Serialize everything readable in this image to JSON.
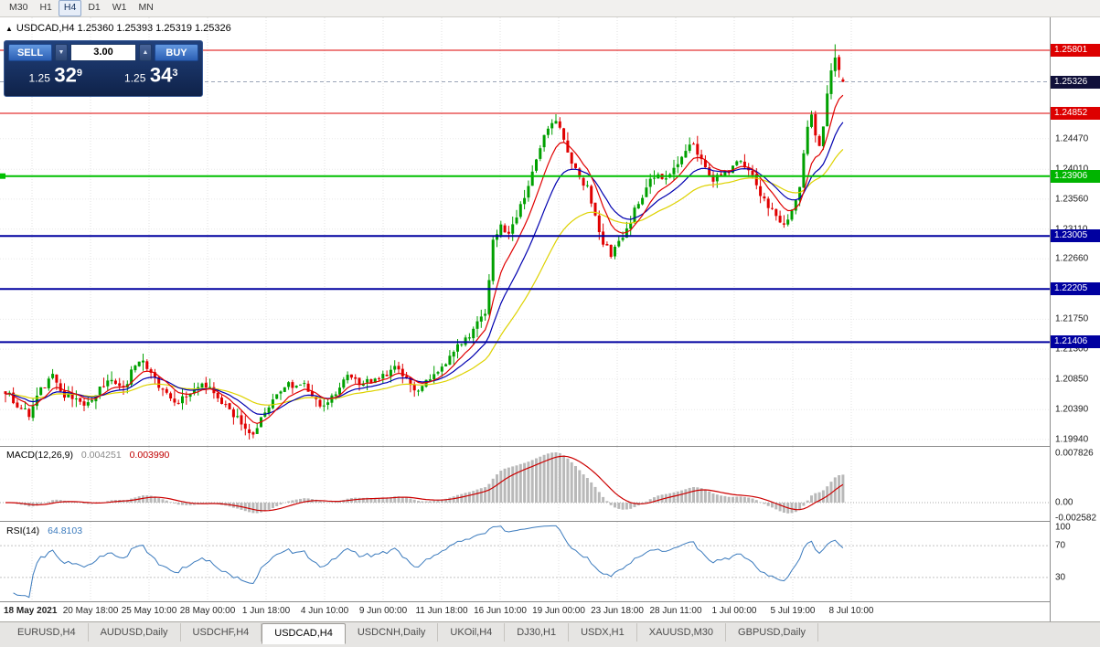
{
  "toolbar": {
    "timeframes": [
      {
        "label": "M30",
        "active": false
      },
      {
        "label": "H1",
        "active": false
      },
      {
        "label": "H4",
        "active": true
      },
      {
        "label": "D1",
        "active": false
      },
      {
        "label": "W1",
        "active": false
      },
      {
        "label": "MN",
        "active": false
      }
    ]
  },
  "chart_header": {
    "ohlc_line": "USDCAD,H4 1.25360 1.25393 1.25319 1.25326"
  },
  "one_click": {
    "sell_label": "SELL",
    "buy_label": "BUY",
    "volume": "3.00",
    "bid": {
      "main": "1.25",
      "pips": "32",
      "point": "9"
    },
    "ask": {
      "main": "1.25",
      "pips": "34",
      "point": "3"
    }
  },
  "price_axis": {
    "plain_ticks": [
      "1.24470",
      "1.24010",
      "1.23560",
      "1.23110",
      "1.22660",
      "1.21750",
      "1.21300",
      "1.20850",
      "1.20390",
      "1.19940"
    ],
    "badges": [
      {
        "label": "1.25801",
        "price": 1.25801,
        "bg": "#dd0000"
      },
      {
        "label": "1.25326",
        "price": 1.25326,
        "bg": "#10103a"
      },
      {
        "label": "1.24852",
        "price": 1.24852,
        "bg": "#dd0000"
      },
      {
        "label": "1.23906",
        "price": 1.23906,
        "bg": "#00b400"
      },
      {
        "label": "1.23005",
        "price": 1.23005,
        "bg": "#0000a0"
      },
      {
        "label": "1.22205",
        "price": 1.22205,
        "bg": "#0000a0"
      },
      {
        "label": "1.21406",
        "price": 1.21406,
        "bg": "#0000a0"
      }
    ]
  },
  "levels": [
    {
      "price": 1.25801,
      "color": "#dd0000",
      "width": 1,
      "style": "solid"
    },
    {
      "price": 1.25326,
      "color": "#9aa4b8",
      "width": 1,
      "style": "dash"
    },
    {
      "price": 1.24852,
      "color": "#dd0000",
      "width": 1,
      "style": "solid"
    },
    {
      "price": 1.23906,
      "color": "#00c000",
      "width": 2,
      "style": "solid",
      "left_marker": true
    },
    {
      "price": 1.23005,
      "color": "#0000a0",
      "width": 2,
      "style": "solid"
    },
    {
      "price": 1.22205,
      "color": "#0000a0",
      "width": 2,
      "style": "solid"
    },
    {
      "price": 1.21406,
      "color": "#0000a0",
      "width": 2,
      "style": "solid"
    }
  ],
  "time_axis": {
    "labels": [
      "18 May 2021",
      "20 May 18:00",
      "25 May 10:00",
      "28 May 00:00",
      "1 Jun 18:00",
      "4 Jun 10:00",
      "9 Jun 00:00",
      "11 Jun 18:00",
      "16 Jun 10:00",
      "19 Jun 00:00",
      "23 Jun 18:00",
      "28 Jun 11:00",
      "1 Jul 00:00",
      "5 Jul 19:00",
      "8 Jul 10:00"
    ]
  },
  "indicators": {
    "macd": {
      "name": "MACD(12,26,9)",
      "value": "0.004251",
      "signal_value": "0.003990",
      "axis_labels": [
        "0.007826",
        "0.00",
        "-0.002582"
      ],
      "histogram_color": "#b9b9b9",
      "signal_color": "#cc0000"
    },
    "rsi": {
      "name": "RSI(14)",
      "value": "64.8103",
      "axis_labels": [
        "100",
        "70",
        "30"
      ],
      "line_color": "#3a7abd",
      "levels": [
        70,
        30
      ]
    }
  },
  "tabs": {
    "items": [
      {
        "label": "EURUSD,H4",
        "active": false
      },
      {
        "label": "AUDUSD,Daily",
        "active": false
      },
      {
        "label": "USDCHF,H4",
        "active": false
      },
      {
        "label": "USDCAD,H4",
        "active": true
      },
      {
        "label": "USDCNH,Daily",
        "active": false
      },
      {
        "label": "UKOil,H4",
        "active": false
      },
      {
        "label": "DJ30,H1",
        "active": false
      },
      {
        "label": "USDX,H1",
        "active": false
      },
      {
        "label": "XAUUSD,M30",
        "active": false
      },
      {
        "label": "GBPUSD,Daily",
        "active": false
      }
    ]
  },
  "chart_data": {
    "type": "candlestick",
    "symbol": "USDCAD",
    "timeframe": "H4",
    "title": "USDCAD,H4",
    "last_ohlc": {
      "open": 1.2536,
      "high": 1.25393,
      "low": 1.25319,
      "close": 1.25326
    },
    "bid": 1.25329,
    "ask": 1.25343,
    "y_axis_range": [
      1.1986,
      1.2631
    ],
    "horizontal_levels": [
      1.25801,
      1.24852,
      1.23906,
      1.23005,
      1.22205,
      1.21406
    ],
    "candle_count": 214,
    "seed": 7,
    "noise": 0.00055,
    "low_extreme": 1.1994,
    "mid_high": 1.2482,
    "high_extreme": 1.2589,
    "price_path_anchors": [
      [
        0,
        1.2068
      ],
      [
        3,
        1.2046
      ],
      [
        6,
        1.2032
      ],
      [
        9,
        1.2068
      ],
      [
        12,
        1.2088
      ],
      [
        15,
        1.2062
      ],
      [
        18,
        1.2052
      ],
      [
        21,
        1.2045
      ],
      [
        24,
        1.207
      ],
      [
        27,
        1.208
      ],
      [
        30,
        1.2068
      ],
      [
        33,
        1.2105
      ],
      [
        35,
        1.2118
      ],
      [
        37,
        1.2092
      ],
      [
        40,
        1.2066
      ],
      [
        43,
        1.2046
      ],
      [
        46,
        1.2058
      ],
      [
        49,
        1.2075
      ],
      [
        52,
        1.2068
      ],
      [
        55,
        1.205
      ],
      [
        58,
        1.203
      ],
      [
        61,
        1.2012
      ],
      [
        63,
        1.2006
      ],
      [
        66,
        1.2036
      ],
      [
        69,
        1.206
      ],
      [
        72,
        1.2075
      ],
      [
        75,
        1.208
      ],
      [
        78,
        1.2058
      ],
      [
        81,
        1.2042
      ],
      [
        84,
        1.2064
      ],
      [
        87,
        1.2088
      ],
      [
        90,
        1.2078
      ],
      [
        93,
        1.2082
      ],
      [
        96,
        1.2088
      ],
      [
        99,
        1.2102
      ],
      [
        102,
        1.2082
      ],
      [
        105,
        1.207
      ],
      [
        108,
        1.2082
      ],
      [
        111,
        1.2102
      ],
      [
        114,
        1.2128
      ],
      [
        117,
        1.2148
      ],
      [
        120,
        1.2168
      ],
      [
        122,
        1.218
      ],
      [
        124,
        1.2292
      ],
      [
        126,
        1.232
      ],
      [
        128,
        1.2302
      ],
      [
        130,
        1.2328
      ],
      [
        132,
        1.236
      ],
      [
        134,
        1.2395
      ],
      [
        136,
        1.243
      ],
      [
        138,
        1.2465
      ],
      [
        140,
        1.2478
      ],
      [
        142,
        1.2442
      ],
      [
        144,
        1.2408
      ],
      [
        146,
        1.2388
      ],
      [
        148,
        1.2372
      ],
      [
        150,
        1.233
      ],
      [
        152,
        1.2292
      ],
      [
        154,
        1.2272
      ],
      [
        156,
        1.229
      ],
      [
        158,
        1.2312
      ],
      [
        160,
        1.2338
      ],
      [
        162,
        1.2362
      ],
      [
        164,
        1.2382
      ],
      [
        166,
        1.2395
      ],
      [
        168,
        1.2388
      ],
      [
        170,
        1.2402
      ],
      [
        172,
        1.2425
      ],
      [
        174,
        1.2442
      ],
      [
        176,
        1.2428
      ],
      [
        178,
        1.2405
      ],
      [
        180,
        1.2385
      ],
      [
        182,
        1.2392
      ],
      [
        184,
        1.2398
      ],
      [
        186,
        1.2418
      ],
      [
        188,
        1.2405
      ],
      [
        190,
        1.2388
      ],
      [
        192,
        1.2362
      ],
      [
        194,
        1.2345
      ],
      [
        196,
        1.233
      ],
      [
        198,
        1.2315
      ],
      [
        200,
        1.2338
      ],
      [
        202,
        1.2372
      ],
      [
        203,
        1.242
      ],
      [
        204,
        1.2462
      ],
      [
        205,
        1.2478
      ],
      [
        206,
        1.2452
      ],
      [
        207,
        1.244
      ],
      [
        208,
        1.247
      ],
      [
        209,
        1.251
      ],
      [
        210,
        1.2548
      ],
      [
        211,
        1.2574
      ],
      [
        212,
        1.2548
      ],
      [
        213,
        1.25326
      ]
    ],
    "candle_colors": {
      "bull": "#00a000",
      "bear": "#e00000"
    },
    "moving_averages": [
      {
        "period": 34,
        "color": "#ded200"
      },
      {
        "period": 16,
        "color": "#0000b0"
      },
      {
        "period": 8,
        "color": "#e00000"
      }
    ],
    "macd_current": 0.004251,
    "macd_signal_current": 0.00399,
    "rsi_current": 64.8103
  }
}
